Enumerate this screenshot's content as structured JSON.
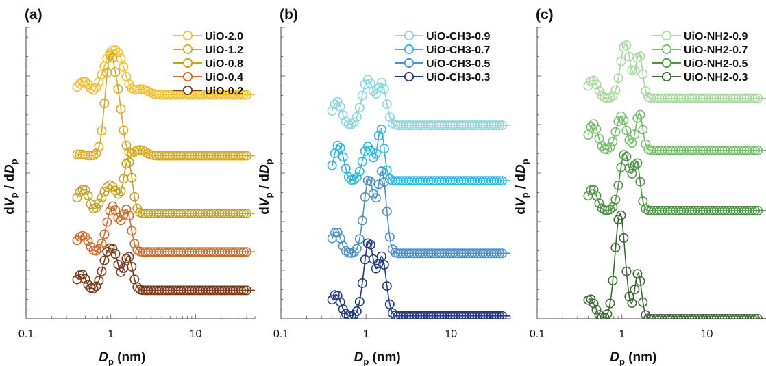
{
  "chart_data": [
    {
      "type": "line",
      "panel_label": "(a)",
      "xlabel": "D",
      "xlabel_sub": "p",
      "xlabel_unit": " (nm)",
      "ylabel": "dV",
      "ylabel_sub": "p",
      "ylabel_mid": " / dD",
      "ylabel_sub2": "p",
      "x_scale": "log",
      "xlim": [
        0.1,
        50
      ],
      "x_ticks": [
        {
          "value": 0.1,
          "label": "0.1"
        },
        {
          "value": 1,
          "label": "1"
        },
        {
          "value": 10,
          "label": "10"
        }
      ],
      "y_units": "arbitrary (curves offset)",
      "legend_position": "top-right",
      "series": [
        {
          "name": "UiO-2.0",
          "color": "#F2BF2E",
          "baseline": 0.787,
          "bump": 0.006,
          "peaks": [
            {
              "x": 0.44,
              "h": 0.03,
              "w": 0.05
            },
            {
              "x": 0.52,
              "h": 0.03,
              "w": 0.04
            },
            {
              "x": 0.98,
              "h": 0.13,
              "w": 0.09
            },
            {
              "x": 1.3,
              "h": 0.08,
              "w": 0.07
            },
            {
              "x": 2.3,
              "h": 0.02,
              "w": 0.08
            }
          ]
        },
        {
          "name": "UiO-1.2",
          "color": "#D9AA1E",
          "baseline": 0.573,
          "bump": 0.005,
          "peaks": [
            {
              "x": 0.98,
              "h": 0.34,
              "w": 0.06
            },
            {
              "x": 1.25,
              "h": 0.14,
              "w": 0.05
            },
            {
              "x": 2.2,
              "h": 0.02,
              "w": 0.07
            }
          ]
        },
        {
          "name": "UiO-0.8",
          "color": "#C4A11F",
          "baseline": 0.37,
          "bump": 0.02,
          "peaks": [
            {
              "x": 0.44,
              "h": 0.05,
              "w": 0.05
            },
            {
              "x": 0.52,
              "h": 0.05,
              "w": 0.04
            },
            {
              "x": 0.98,
              "h": 0.1,
              "w": 0.09
            },
            {
              "x": 1.6,
              "h": 0.18,
              "w": 0.05
            }
          ]
        },
        {
          "name": "UiO-0.4",
          "color": "#CE6A2A",
          "baseline": 0.235,
          "bump": 0.02,
          "peaks": [
            {
              "x": 0.44,
              "h": 0.03,
              "w": 0.05
            },
            {
              "x": 0.52,
              "h": 0.03,
              "w": 0.04
            },
            {
              "x": 1.05,
              "h": 0.16,
              "w": 0.07
            },
            {
              "x": 1.55,
              "h": 0.14,
              "w": 0.05
            }
          ]
        },
        {
          "name": "UiO-0.2",
          "color": "#7A3A1C",
          "baseline": 0.1,
          "bump": 0.02,
          "peaks": [
            {
              "x": 0.46,
              "h": 0.04,
              "w": 0.05
            },
            {
              "x": 0.95,
              "h": 0.14,
              "w": 0.07
            },
            {
              "x": 1.15,
              "h": 0.05,
              "w": 0.04
            },
            {
              "x": 1.6,
              "h": 0.12,
              "w": 0.05
            }
          ]
        }
      ]
    },
    {
      "type": "line",
      "panel_label": "(b)",
      "xlabel": "D",
      "xlabel_sub": "p",
      "xlabel_unit": " (nm)",
      "ylabel": "dV",
      "ylabel_sub": "p",
      "ylabel_mid": " / dD",
      "ylabel_sub2": "p",
      "x_scale": "log",
      "xlim": [
        0.1,
        50
      ],
      "x_ticks": [
        {
          "value": 0.1,
          "label": "0.1"
        },
        {
          "value": 1,
          "label": "1"
        },
        {
          "value": 10,
          "label": "10"
        }
      ],
      "y_units": "arbitrary (curves offset)",
      "legend_position": "top-right",
      "series": [
        {
          "name": "UiO-CH3-0.9",
          "color": "#8ED6DF",
          "baseline": 0.68,
          "bump": 0.03,
          "peaks": [
            {
              "x": 0.47,
              "h": 0.06,
              "w": 0.05
            },
            {
              "x": 1.05,
              "h": 0.16,
              "w": 0.07
            },
            {
              "x": 1.55,
              "h": 0.14,
              "w": 0.05
            }
          ]
        },
        {
          "name": "UiO-CH3-0.7",
          "color": "#27B7E3",
          "baseline": 0.485,
          "bump": 0.03,
          "peaks": [
            {
              "x": 0.46,
              "h": 0.08,
              "w": 0.04
            },
            {
              "x": 0.53,
              "h": 0.06,
              "w": 0.04
            },
            {
              "x": 1.05,
              "h": 0.12,
              "w": 0.06
            },
            {
              "x": 1.5,
              "h": 0.18,
              "w": 0.04
            }
          ]
        },
        {
          "name": "UiO-CH3-0.5",
          "color": "#4B91C9",
          "baseline": 0.23,
          "bump": 0.03,
          "peaks": [
            {
              "x": 0.46,
              "h": 0.05,
              "w": 0.05
            },
            {
              "x": 1.08,
              "h": 0.26,
              "w": 0.06
            },
            {
              "x": 1.55,
              "h": 0.28,
              "w": 0.05
            }
          ]
        },
        {
          "name": "UiO-CH3-0.3",
          "color": "#233A84",
          "baseline": 0.01,
          "bump": 0.04,
          "peaks": [
            {
              "x": 0.46,
              "h": 0.04,
              "w": 0.05
            },
            {
              "x": 1.08,
              "h": 0.26,
              "w": 0.06
            },
            {
              "x": 1.55,
              "h": 0.2,
              "w": 0.05
            }
          ]
        }
      ]
    },
    {
      "type": "line",
      "panel_label": "(c)",
      "xlabel": "D",
      "xlabel_sub": "p",
      "xlabel_unit": " (nm)",
      "ylabel": "dV",
      "ylabel_sub": "p",
      "ylabel_mid": " / dD",
      "ylabel_sub2": "p",
      "x_scale": "log",
      "xlim": [
        0.1,
        50
      ],
      "x_ticks": [
        {
          "value": 0.1,
          "label": "0.1"
        },
        {
          "value": 1,
          "label": "1"
        },
        {
          "value": 10,
          "label": "10"
        }
      ],
      "y_units": "arbitrary (curves offset)",
      "legend_position": "top-right",
      "series": [
        {
          "name": "UiO-NH2-0.9",
          "color": "#A9D8A0",
          "baseline": 0.775,
          "bump": 0.03,
          "peaks": [
            {
              "x": 0.47,
              "h": 0.04,
              "w": 0.05
            },
            {
              "x": 1.1,
              "h": 0.19,
              "w": 0.06
            },
            {
              "x": 1.6,
              "h": 0.15,
              "w": 0.04
            }
          ]
        },
        {
          "name": "UiO-NH2-0.7",
          "color": "#75BC6C",
          "baseline": 0.592,
          "bump": 0.03,
          "peaks": [
            {
              "x": 0.47,
              "h": 0.07,
              "w": 0.05
            },
            {
              "x": 0.98,
              "h": 0.12,
              "w": 0.06
            },
            {
              "x": 1.6,
              "h": 0.13,
              "w": 0.04
            }
          ]
        },
        {
          "name": "UiO-NH2-0.5",
          "color": "#4E9545",
          "baseline": 0.38,
          "bump": 0.03,
          "peaks": [
            {
              "x": 0.46,
              "h": 0.05,
              "w": 0.05
            },
            {
              "x": 1.08,
              "h": 0.2,
              "w": 0.06
            },
            {
              "x": 1.5,
              "h": 0.16,
              "w": 0.04
            }
          ]
        },
        {
          "name": "UiO-NH2-0.3",
          "color": "#3B6A34",
          "baseline": 0.0,
          "bump": 0.07,
          "peaks": [
            {
              "x": 0.95,
              "h": 0.37,
              "w": 0.06
            },
            {
              "x": 1.55,
              "h": 0.16,
              "w": 0.04
            }
          ]
        }
      ]
    }
  ]
}
